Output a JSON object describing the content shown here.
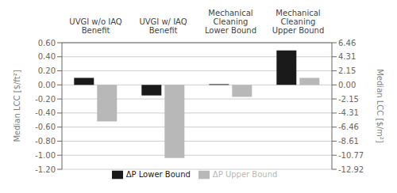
{
  "chart_data": {
    "type": "bar",
    "categories": [
      "UVGI w/o IAQ\nBenefit",
      "UVGI w/ IAQ\nBenefit",
      "Mechanical\nCleaning\nLower Bound",
      "Mechanical\nCleaning\nUpper Bound"
    ],
    "series": [
      {
        "name": "ΔP Lower Bound",
        "color": "#1a1a1a",
        "values": [
          0.1,
          -0.15,
          0.01,
          0.49
        ]
      },
      {
        "name": "ΔP Upper Bound",
        "color": "#b8b8b8",
        "values": [
          -0.52,
          -1.04,
          -0.17,
          0.1
        ]
      }
    ],
    "ylabel": "Median LCC [$/ft²]",
    "y2label": "Median LCC [$/m²]",
    "ylim": [
      -1.2,
      0.6
    ],
    "yticks": [
      {
        "value": 0.6,
        "label": "0.60"
      },
      {
        "value": 0.4,
        "label": "0.40"
      },
      {
        "value": 0.2,
        "label": "0.20"
      },
      {
        "value": 0.0,
        "label": "0.00"
      },
      {
        "value": -0.2,
        "label": "-0.20"
      },
      {
        "value": -0.4,
        "label": "-0.40"
      },
      {
        "value": -0.6,
        "label": "-0.60"
      },
      {
        "value": -0.8,
        "label": "-0.80"
      },
      {
        "value": -1.0,
        "label": "-1.00"
      },
      {
        "value": -1.2,
        "label": "-1.20"
      }
    ],
    "y2lim": [
      -12.92,
      6.46
    ],
    "y2ticks": [
      6.46,
      4.31,
      2.15,
      {
        "value": 0.0,
        "label": "0.00"
      },
      -2.15,
      -4.31,
      -6.46,
      -8.61,
      -10.77,
      -12.92
    ],
    "grid": true,
    "legend": "bottom"
  }
}
